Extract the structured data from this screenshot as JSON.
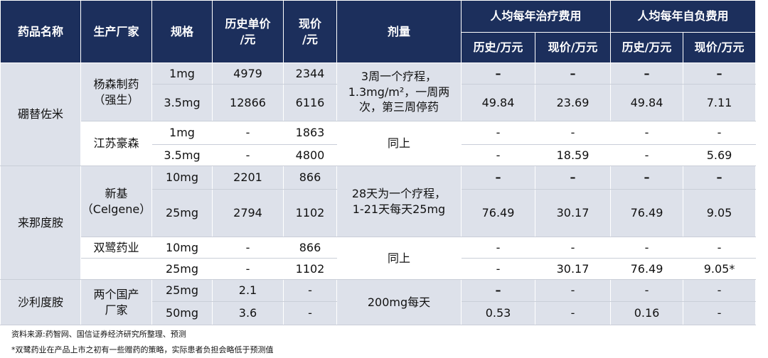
{
  "table": {
    "header": [
      [
        "药品名称",
        "生产厂家",
        "规格",
        "历史单价\n/元",
        "现价\n/元",
        "剂量",
        "人均每年治疗费用",
        "人均每年自负费用"
      ],
      [
        "历史/万元",
        "现价/万元",
        "历史/万元",
        "现价/万元"
      ]
    ],
    "rows": [
      [
        "硼替佐米",
        "杨森制药\n（强生）",
        "1mg",
        "4979",
        "2344",
        "3周一个疗程，\n1.3mg/m²，一周两\n次，第三周停药",
        "–",
        "–",
        "–",
        "–"
      ],
      [
        "3.5mg",
        "12866",
        "6116",
        "49.84",
        "23.69",
        "49.84",
        "7.11"
      ],
      [
        "江苏豪森",
        "1mg",
        "-",
        "1863",
        "同上",
        "-",
        "-",
        "-",
        "-"
      ],
      [
        "3.5mg",
        "-",
        "4800",
        "-",
        "18.59",
        "-",
        "5.69"
      ],
      [
        "来那度胺",
        "新基\n（Celgene）",
        "10mg",
        "2201",
        "866",
        "28天为一个疗程，\n1-21天每天25mg",
        "–",
        "–",
        "–",
        "–"
      ],
      [
        "25mg",
        "2794",
        "1102",
        "76.49",
        "30.17",
        "76.49",
        "9.05"
      ],
      [
        "双鹭药业",
        "10mg",
        "-",
        "866",
        "同上",
        "-",
        "-",
        "-",
        "-"
      ],
      [
        "25mg",
        "-",
        "1102",
        "-",
        "30.17",
        "76.49",
        "9.05*"
      ],
      [
        "沙利度胺",
        "两个国产\n厂家",
        "25mg",
        "2.1",
        "-",
        "200mg每天",
        "–",
        "-",
        "-",
        "-"
      ],
      [
        "50mg",
        "3.6",
        "-",
        "0.53",
        "-",
        "0.16",
        "-"
      ]
    ]
  },
  "notes": [
    "资料来源:药智网、国信证券经济研究所整理、预测",
    "*双鹭药业在产品上市之初有一些赠药的策略，实际患者负担会略低于预测值"
  ]
}
